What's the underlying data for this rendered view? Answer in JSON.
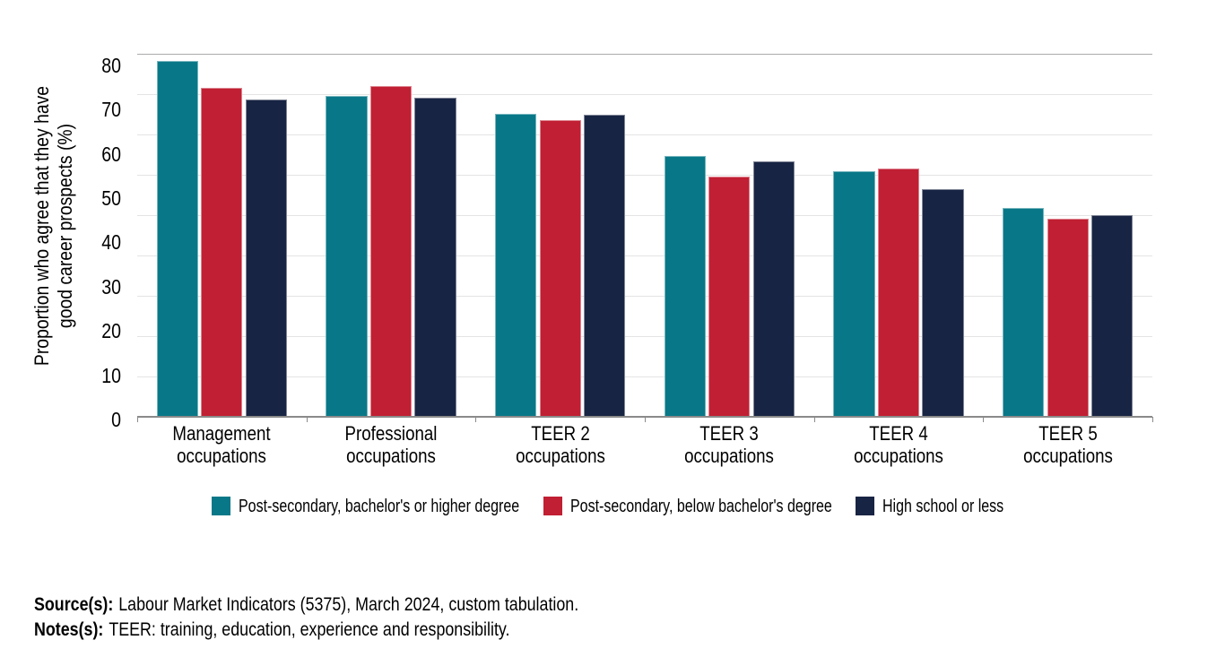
{
  "figure": {
    "y_axis_title": [
      "Proportion who agree that they have",
      "good career prospects (%)"
    ],
    "footer": {
      "source_label": "Source(s):",
      "source_text": "Labour Market Indicators (5375), March 2024, custom tabulation.",
      "notes_label": "Notes(s):",
      "notes_text": "TEER: training, education, experience and responsibility."
    }
  },
  "chart_data": {
    "type": "bar",
    "title": "",
    "xlabel": "",
    "ylabel": "Proportion who agree that they have good career prospects (%)",
    "categories": [
      "Management occupations",
      "Professional occupations",
      "TEER 2 occupations",
      "TEER 3 occupations",
      "TEER 4 occupations",
      "TEER 5 occupations"
    ],
    "category_lines": [
      [
        "Management",
        "occupations"
      ],
      [
        "Professional",
        "occupations"
      ],
      [
        "TEER 2",
        "occupations"
      ],
      [
        "TEER 3",
        "occupations"
      ],
      [
        "TEER 4",
        "occupations"
      ],
      [
        "TEER 5",
        "occupations"
      ]
    ],
    "series": [
      {
        "name": "Post-secondary, bachelor's or higher degree",
        "color": "#087888",
        "values": [
          88.2,
          79.5,
          75.1,
          64.6,
          60.9,
          51.8
        ]
      },
      {
        "name": "Post-secondary, below bachelor's degree",
        "color": "#c11f33",
        "values": [
          81.5,
          82.1,
          73.6,
          59.6,
          61.6,
          49.0
        ]
      },
      {
        "name": "High school or less",
        "color": "#182443",
        "values": [
          78.7,
          79.2,
          74.9,
          63.3,
          56.4,
          50.0
        ]
      }
    ],
    "yticks": [
      0,
      10,
      20,
      30,
      40,
      50,
      60,
      70,
      80
    ],
    "ylim": [
      0,
      90
    ],
    "grid": true,
    "legend_position": "bottom",
    "gridline_color": "#e4e4e4",
    "axis_line_color": "#8a8a8a"
  }
}
